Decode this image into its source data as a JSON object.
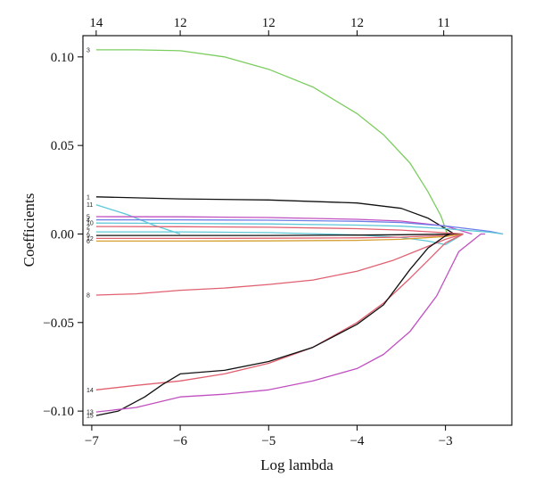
{
  "chart_data": {
    "type": "line",
    "title": "",
    "xlabel": "Log lambda",
    "ylabel": "Coefficients",
    "xlim": [
      -7.1,
      -2.25
    ],
    "ylim": [
      -0.108,
      0.112
    ],
    "xticks": [
      -7,
      -6,
      -5,
      -4,
      -3
    ],
    "xtick_labels": [
      "−7",
      "−6",
      "−5",
      "−4",
      "−3"
    ],
    "yticks": [
      -0.1,
      -0.05,
      0.0,
      0.05,
      0.1
    ],
    "ytick_labels": [
      "−0.10",
      "−0.05",
      "0.00",
      "0.05",
      "0.10"
    ],
    "top_axis": {
      "ticks": [
        -6.95,
        -6.0,
        -5.0,
        -4.0,
        -3.02
      ],
      "labels": [
        "14",
        "12",
        "12",
        "12",
        "11"
      ]
    },
    "grid": false,
    "legend": "none",
    "series": [
      {
        "name": "3",
        "label": "3",
        "color": "#7ccd60",
        "x": [
          -6.95,
          -6.5,
          -6.0,
          -5.5,
          -5.0,
          -4.5,
          -4.0,
          -3.7,
          -3.4,
          -3.2,
          -3.05,
          -2.98
        ],
        "y": [
          0.104,
          0.104,
          0.1035,
          0.1,
          0.093,
          0.083,
          0.068,
          0.056,
          0.04,
          0.024,
          0.01,
          0.0
        ]
      },
      {
        "name": "1",
        "label": "1",
        "color": "#111111",
        "x": [
          -6.95,
          -6.0,
          -5.0,
          -4.0,
          -3.5,
          -3.2,
          -3.0,
          -2.9
        ],
        "y": [
          0.021,
          0.0198,
          0.0192,
          0.0175,
          0.0145,
          0.009,
          0.003,
          0.0
        ]
      },
      {
        "name": "11",
        "label": "11",
        "color": "#5ec8d8",
        "x": [
          -6.95,
          -6.6,
          -6.3,
          -6.0
        ],
        "y": [
          0.0165,
          0.011,
          0.005,
          0.0
        ]
      },
      {
        "name": "5",
        "label": "5",
        "color": "#c050c0",
        "x": [
          -6.95,
          -6.0,
          -5.0,
          -4.0,
          -3.5,
          -3.0,
          -2.7
        ],
        "y": [
          0.0098,
          0.0097,
          0.0093,
          0.0083,
          0.0073,
          0.0045,
          0.0
        ]
      },
      {
        "name": "4",
        "label": "4",
        "color": "#6a7ee8",
        "x": [
          -6.95,
          -6.0,
          -5.0,
          -4.0,
          -3.5,
          -3.0,
          -2.5,
          -2.35
        ],
        "y": [
          0.008,
          0.008,
          0.0078,
          0.0072,
          0.0065,
          0.0045,
          0.0015,
          0.0
        ]
      },
      {
        "name": "10",
        "label": "10",
        "color": "#5ec8d8",
        "x": [
          -6.95,
          -6.0,
          -5.0,
          -4.0,
          -3.5,
          -3.0,
          -2.5,
          -2.35
        ],
        "y": [
          0.0062,
          0.006,
          0.0057,
          0.005,
          0.0044,
          0.003,
          0.001,
          0.0
        ]
      },
      {
        "name": "2",
        "label": "2",
        "color": "#e06070",
        "x": [
          -6.95,
          -6.0,
          -5.0,
          -4.0,
          -3.5,
          -3.0,
          -2.8
        ],
        "y": [
          0.0042,
          0.0041,
          0.0038,
          0.003,
          0.0022,
          0.0007,
          0.0
        ]
      },
      {
        "name": "7",
        "label": "7",
        "color": "#5ec8d8",
        "x": [
          -6.95,
          -6.0,
          -5.0,
          -4.0,
          -3.5,
          -3.2,
          -3.0,
          -2.8
        ],
        "y": [
          0.0012,
          0.0012,
          0.0008,
          -0.0005,
          -0.002,
          -0.004,
          -0.006,
          0.0
        ]
      },
      {
        "name": "9",
        "label": "9",
        "color": "#111111",
        "x": [
          -6.95,
          -6.0,
          -5.0,
          -4.0,
          -3.5,
          -3.0,
          -2.8
        ],
        "y": [
          -0.0008,
          -0.0008,
          -0.0008,
          -0.0006,
          -0.0004,
          -0.0001,
          0.0
        ]
      },
      {
        "name": "12",
        "label": "12",
        "color": "#e06070",
        "x": [
          -6.95,
          -6.0,
          -5.0,
          -4.0,
          -3.5,
          -3.0,
          -2.8
        ],
        "y": [
          -0.0025,
          -0.0025,
          -0.0024,
          -0.0022,
          -0.0018,
          -0.0008,
          0.0
        ]
      },
      {
        "name": "6",
        "label": "6",
        "color": "#d4a030",
        "x": [
          -6.95,
          -6.0,
          -5.0,
          -4.0,
          -3.5,
          -3.0,
          -2.8
        ],
        "y": [
          -0.004,
          -0.004,
          -0.0039,
          -0.0036,
          -0.003,
          -0.0014,
          0.0
        ]
      },
      {
        "name": "8",
        "label": "8",
        "color": "#e06070",
        "x": [
          -6.95,
          -6.5,
          -6.0,
          -5.5,
          -5.0,
          -4.5,
          -4.0,
          -3.6,
          -3.3,
          -3.0,
          -2.8
        ],
        "y": [
          -0.0345,
          -0.0338,
          -0.0318,
          -0.0305,
          -0.0285,
          -0.026,
          -0.021,
          -0.015,
          -0.009,
          -0.003,
          0.0
        ]
      },
      {
        "name": "14",
        "label": "14",
        "color": "#e06070",
        "x": [
          -6.95,
          -6.5,
          -6.0,
          -5.5,
          -5.0,
          -4.5,
          -4.0,
          -3.7,
          -3.4,
          -3.2,
          -3.0,
          -2.8
        ],
        "y": [
          -0.088,
          -0.0855,
          -0.083,
          -0.079,
          -0.073,
          -0.064,
          -0.05,
          -0.039,
          -0.025,
          -0.015,
          -0.005,
          0.0
        ]
      },
      {
        "name": "15",
        "label": "15",
        "color": "#111111",
        "x": [
          -6.95,
          -6.7,
          -6.4,
          -6.2,
          -6.0,
          -5.5,
          -5.0,
          -4.5,
          -4.0,
          -3.7,
          -3.4,
          -3.2,
          -3.0,
          -2.95
        ],
        "y": [
          -0.1025,
          -0.1,
          -0.092,
          -0.085,
          -0.079,
          -0.077,
          -0.072,
          -0.064,
          -0.051,
          -0.04,
          -0.02,
          -0.008,
          -0.001,
          0.0
        ]
      },
      {
        "name": "13",
        "label": "13",
        "color": "#c050c0",
        "x": [
          -6.95,
          -6.5,
          -6.0,
          -5.5,
          -5.0,
          -4.5,
          -4.0,
          -3.7,
          -3.4,
          -3.1,
          -2.85,
          -2.6,
          -2.55
        ],
        "y": [
          -0.1005,
          -0.098,
          -0.092,
          -0.0905,
          -0.088,
          -0.083,
          -0.076,
          -0.068,
          -0.055,
          -0.035,
          -0.01,
          0.0,
          0.0
        ]
      }
    ]
  }
}
